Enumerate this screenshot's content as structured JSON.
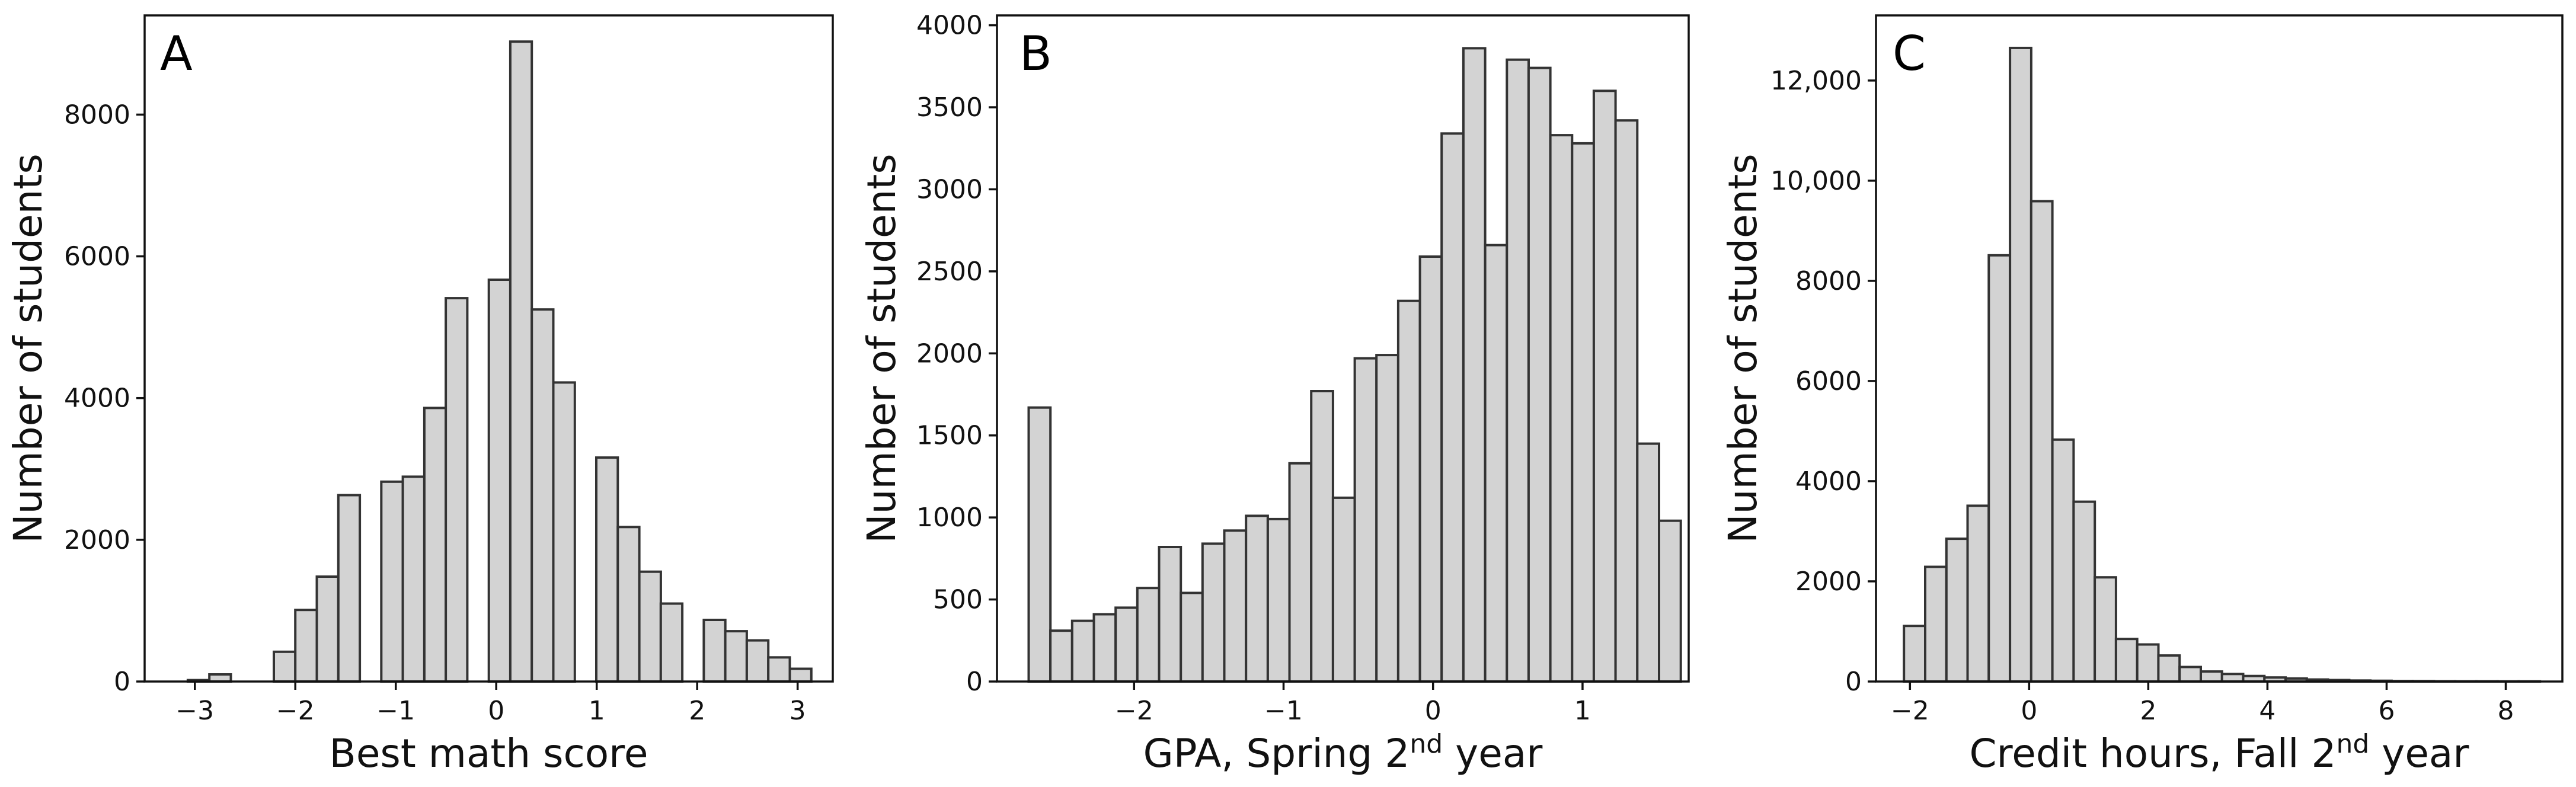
{
  "chart_data": [
    {
      "type": "bar",
      "panel": "A",
      "xlabel": "Best math score",
      "ylabel": "Number of students",
      "xlim": [
        -3.5,
        3.35
      ],
      "ylim": [
        0,
        9400
      ],
      "xticks": [
        -3,
        -2,
        -1,
        0,
        1,
        2,
        3
      ],
      "xticklabels": [
        "−3",
        "−2",
        "−1",
        "0",
        "1",
        "2",
        "3"
      ],
      "yticks": [
        0,
        2000,
        4000,
        6000,
        8000
      ],
      "yticklabels": [
        "0",
        "2000",
        "4000",
        "6000",
        "8000"
      ],
      "bin_width": 0.214,
      "bins": [
        {
          "x0": -3.07,
          "count": 20
        },
        {
          "x0": -2.856,
          "count": 100
        },
        {
          "x0": -2.214,
          "count": 420
        },
        {
          "x0": -2.0,
          "count": 1010
        },
        {
          "x0": -1.786,
          "count": 1480
        },
        {
          "x0": -1.572,
          "count": 2630
        },
        {
          "x0": -1.144,
          "count": 2820
        },
        {
          "x0": -0.93,
          "count": 2890
        },
        {
          "x0": -0.716,
          "count": 3860
        },
        {
          "x0": -0.502,
          "count": 5410
        },
        {
          "x0": -0.074,
          "count": 5670
        },
        {
          "x0": 0.14,
          "count": 9030
        },
        {
          "x0": 0.354,
          "count": 5250
        },
        {
          "x0": 0.568,
          "count": 4220
        },
        {
          "x0": 0.996,
          "count": 3160
        },
        {
          "x0": 1.21,
          "count": 2180
        },
        {
          "x0": 1.424,
          "count": 1550
        },
        {
          "x0": 1.638,
          "count": 1100
        },
        {
          "x0": 2.066,
          "count": 870
        },
        {
          "x0": 2.28,
          "count": 710
        },
        {
          "x0": 2.494,
          "count": 580
        },
        {
          "x0": 2.708,
          "count": 340
        },
        {
          "x0": 2.922,
          "count": 180
        }
      ]
    },
    {
      "type": "bar",
      "panel": "B",
      "xlabel": "GPA, Spring 2",
      "xlabel_sup": "nd",
      "xlabel_tail": " year",
      "ylabel": "Number of students",
      "xlim": [
        -2.917,
        1.71
      ],
      "ylim": [
        0,
        4060
      ],
      "xticks": [
        -2,
        -1,
        0,
        1
      ],
      "xticklabels": [
        "−2",
        "−1",
        "0",
        "1"
      ],
      "yticks": [
        0,
        500,
        1000,
        1500,
        2000,
        2500,
        3000,
        3500,
        4000
      ],
      "yticklabels": [
        "0",
        "500",
        "1000",
        "1500",
        "2000",
        "2500",
        "3000",
        "3500",
        "4000"
      ],
      "bin_width": 0.1454,
      "bins": [
        {
          "x0": -2.705,
          "count": 1670
        },
        {
          "x0": -2.5596,
          "count": 310
        },
        {
          "x0": -2.4142,
          "count": 370
        },
        {
          "x0": -2.2688,
          "count": 410
        },
        {
          "x0": -2.1234,
          "count": 450
        },
        {
          "x0": -1.978,
          "count": 570
        },
        {
          "x0": -1.8326,
          "count": 820
        },
        {
          "x0": -1.6872,
          "count": 540
        },
        {
          "x0": -1.5418,
          "count": 840
        },
        {
          "x0": -1.3964,
          "count": 920
        },
        {
          "x0": -1.251,
          "count": 1010
        },
        {
          "x0": -1.1056,
          "count": 990
        },
        {
          "x0": -0.9602,
          "count": 1330
        },
        {
          "x0": -0.8148,
          "count": 1770
        },
        {
          "x0": -0.6694,
          "count": 1120
        },
        {
          "x0": -0.524,
          "count": 1970
        },
        {
          "x0": -0.3786,
          "count": 1990
        },
        {
          "x0": -0.2332,
          "count": 2320
        },
        {
          "x0": -0.0878,
          "count": 2590
        },
        {
          "x0": 0.0576,
          "count": 3340
        },
        {
          "x0": 0.203,
          "count": 3860
        },
        {
          "x0": 0.3484,
          "count": 2660
        },
        {
          "x0": 0.4938,
          "count": 3790
        },
        {
          "x0": 0.6392,
          "count": 3740
        },
        {
          "x0": 0.7846,
          "count": 3330
        },
        {
          "x0": 0.93,
          "count": 3280
        },
        {
          "x0": 1.0754,
          "count": 3600
        },
        {
          "x0": 1.2208,
          "count": 3420
        },
        {
          "x0": 1.3662,
          "count": 1450
        },
        {
          "x0": 1.5116,
          "count": 980
        }
      ]
    },
    {
      "type": "bar",
      "panel": "C",
      "xlabel": "Credit hours, Fall 2",
      "xlabel_sup": "nd",
      "xlabel_tail": " year",
      "ylabel": "Number of students",
      "xlim": [
        -2.57,
        8.95
      ],
      "ylim": [
        0,
        13300
      ],
      "xticks": [
        -2,
        0,
        2,
        4,
        6,
        8
      ],
      "xticklabels": [
        "−2",
        "0",
        "2",
        "4",
        "6",
        "8"
      ],
      "yticks": [
        0,
        2000,
        4000,
        6000,
        8000,
        10000,
        12000
      ],
      "yticklabels": [
        "0",
        "2000",
        "4000",
        "6000",
        "8000",
        "10,000",
        "12,000"
      ],
      "bin_width": 0.3558,
      "bins": [
        {
          "x0": -2.1,
          "count": 1110
        },
        {
          "x0": -1.7442,
          "count": 2290
        },
        {
          "x0": -1.3884,
          "count": 2850
        },
        {
          "x0": -1.0326,
          "count": 3510
        },
        {
          "x0": -0.6768,
          "count": 8510
        },
        {
          "x0": -0.321,
          "count": 12650
        },
        {
          "x0": 0.0348,
          "count": 9590
        },
        {
          "x0": 0.3906,
          "count": 4830
        },
        {
          "x0": 0.7464,
          "count": 3590
        },
        {
          "x0": 1.1022,
          "count": 2080
        },
        {
          "x0": 1.458,
          "count": 850
        },
        {
          "x0": 1.8138,
          "count": 740
        },
        {
          "x0": 2.1696,
          "count": 520
        },
        {
          "x0": 2.5254,
          "count": 290
        },
        {
          "x0": 2.8812,
          "count": 200
        },
        {
          "x0": 3.237,
          "count": 150
        },
        {
          "x0": 3.5928,
          "count": 110
        },
        {
          "x0": 3.9486,
          "count": 80
        },
        {
          "x0": 4.3044,
          "count": 60
        },
        {
          "x0": 4.6602,
          "count": 40
        },
        {
          "x0": 5.016,
          "count": 30
        },
        {
          "x0": 5.3718,
          "count": 20
        },
        {
          "x0": 5.7276,
          "count": 15
        },
        {
          "x0": 6.0834,
          "count": 10
        },
        {
          "x0": 6.4392,
          "count": 8
        },
        {
          "x0": 6.795,
          "count": 5
        },
        {
          "x0": 7.1508,
          "count": 4
        },
        {
          "x0": 7.5066,
          "count": 3
        },
        {
          "x0": 7.8624,
          "count": 2
        },
        {
          "x0": 8.2182,
          "count": 2
        }
      ]
    }
  ]
}
